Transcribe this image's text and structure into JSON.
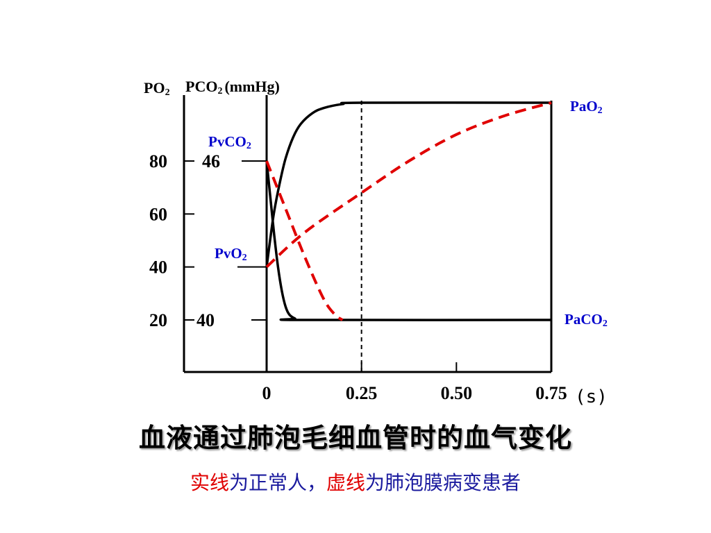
{
  "chart_data": {
    "type": "line",
    "title": "血液通过肺泡毛细血管时的血气变化",
    "caption": {
      "solid_word": "实线",
      "solid_meaning": "为正常人，",
      "dashed_word": "虚线",
      "dashed_meaning": "为肺泡膜病变患者"
    },
    "ylabel": {
      "po2": "PO",
      "pco2": "PCO",
      "sub": "2",
      "unit": "(mmHg)"
    },
    "xunit": "(s)",
    "xlim": [
      -0.5,
      0.75
    ],
    "ylim": [
      0,
      107
    ],
    "po2_ticks": [
      {
        "value": 80,
        "label": "80"
      },
      {
        "value": 60,
        "label": "60"
      },
      {
        "value": 40,
        "label": "40"
      },
      {
        "value": 20,
        "label": "20"
      }
    ],
    "pco2_ticks": [
      {
        "value": 46,
        "label": "46",
        "po2_scale_position": 80
      },
      {
        "value": 40,
        "label": "40",
        "po2_scale_position": 20
      }
    ],
    "x_ticks": [
      {
        "value": 0,
        "label": "0"
      },
      {
        "value": 0.25,
        "label": "0.25"
      },
      {
        "value": 0.5,
        "label": "0.50"
      },
      {
        "value": 0.75,
        "label": "0.75"
      }
    ],
    "reference_line": {
      "x": 0.25,
      "style": "dashed"
    },
    "curve_labels": {
      "pvco2": {
        "main": "PvCO",
        "sub": "2"
      },
      "pvo2": {
        "main": "PvO",
        "sub": "2"
      },
      "pao2": {
        "main": "PaO",
        "sub": "2"
      },
      "paco2": {
        "main": "PaCO",
        "sub": "2"
      }
    },
    "series": [
      {
        "style": "solid",
        "color": "#000000",
        "x": [
          0,
          0.01,
          0.02,
          0.035,
          0.05,
          0.07,
          0.09,
          0.12,
          0.15,
          0.2,
          0.25,
          0.75
        ],
        "y": [
          40,
          51,
          61,
          72,
          81,
          89,
          94,
          98,
          100,
          101.5,
          102,
          102
        ]
      },
      {
        "style": "solid",
        "color": "#000000",
        "x": [
          0,
          0.01,
          0.02,
          0.03,
          0.04,
          0.05,
          0.06,
          0.075,
          0.09,
          0.75
        ],
        "y": [
          80,
          66,
          52,
          40,
          31,
          25,
          22,
          20.5,
          20,
          20
        ]
      },
      {
        "style": "dashed",
        "color": "#e00000",
        "x": [
          0,
          0.1,
          0.25,
          0.375,
          0.5,
          0.625,
          0.75
        ],
        "y": [
          40,
          53,
          68,
          80,
          90,
          97,
          102
        ]
      },
      {
        "style": "dashed",
        "color": "#e00000",
        "x": [
          0,
          0.05,
          0.1,
          0.15,
          0.18,
          0.2
        ],
        "y": [
          80,
          62,
          44,
          28,
          22,
          20
        ]
      }
    ]
  }
}
